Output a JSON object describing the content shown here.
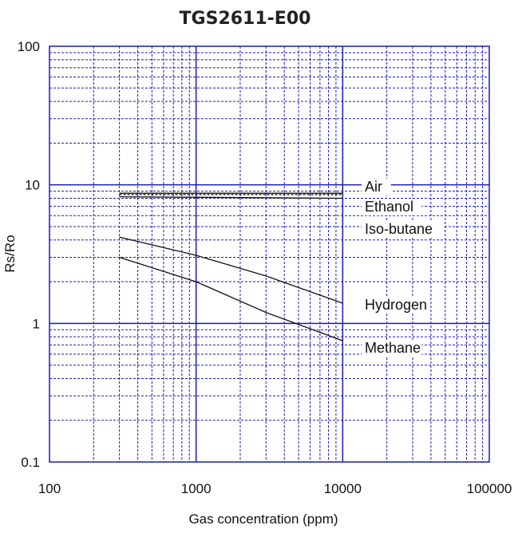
{
  "chart_data": {
    "type": "line",
    "title": "TGS2611-E00",
    "xlabel": "Gas concentration (ppm)",
    "ylabel": "Rs/Ro",
    "x_scale": "log",
    "y_scale": "log",
    "xlim": [
      100,
      100000
    ],
    "ylim": [
      0.1,
      100
    ],
    "x_ticks": [
      "100",
      "1000",
      "10000",
      "100000"
    ],
    "y_ticks": [
      "0.1",
      "1",
      "10",
      "100"
    ],
    "grid": true,
    "grid_color": "#1a1ab8",
    "line_color": "#111111",
    "series": [
      {
        "name": "Air",
        "x": [
          300,
          10000
        ],
        "y": [
          8.7,
          8.7
        ]
      },
      {
        "name": "Ethanol",
        "x": [
          300,
          10000
        ],
        "y": [
          8.5,
          8.5
        ],
        "dash": true
      },
      {
        "name": "Iso-butane",
        "x": [
          300,
          10000
        ],
        "y": [
          8.2,
          8.0
        ]
      },
      {
        "name": "Hydrogen",
        "x": [
          300,
          1000,
          3000,
          10000
        ],
        "y": [
          4.2,
          3.1,
          2.2,
          1.4
        ]
      },
      {
        "name": "Methane",
        "x": [
          300,
          1000,
          3000,
          10000
        ],
        "y": [
          3.0,
          2.0,
          1.2,
          0.75
        ]
      }
    ]
  }
}
